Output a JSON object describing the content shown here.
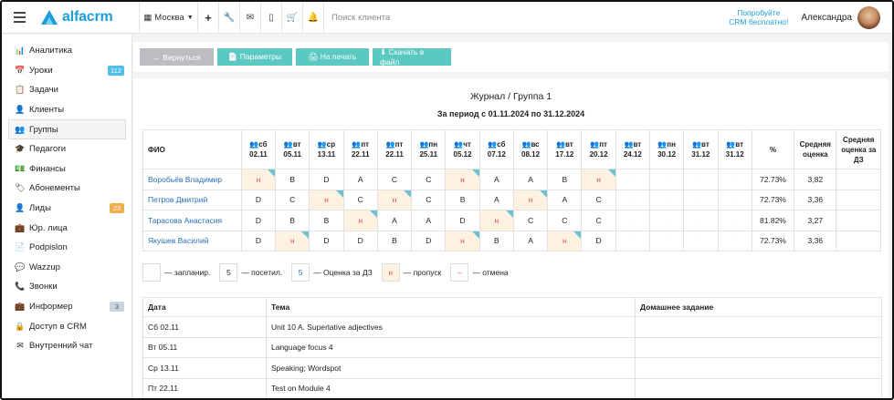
{
  "header": {
    "city": "Москва",
    "search_placeholder": "Поиск клиента",
    "try_line1": "Попробуйте",
    "try_line2": "CRM бесплатно!",
    "user_name": "Александра",
    "logo_text": "alfacrm"
  },
  "sidebar": {
    "items": [
      {
        "label": "Аналитика",
        "icon": "📊",
        "name": "analytics"
      },
      {
        "label": "Уроки",
        "icon": "📅",
        "name": "lessons",
        "badge": "112",
        "badge_color": "blue"
      },
      {
        "label": "Задачи",
        "icon": "📋",
        "name": "tasks"
      },
      {
        "label": "Клиенты",
        "icon": "👤",
        "name": "clients"
      },
      {
        "label": "Группы",
        "icon": "👥",
        "name": "groups",
        "active": true
      },
      {
        "label": "Педагоги",
        "icon": "🎓",
        "name": "teachers"
      },
      {
        "label": "Финансы",
        "icon": "💵",
        "name": "finances"
      },
      {
        "label": "Абонементы",
        "icon": "🏷",
        "name": "subscriptions"
      },
      {
        "label": "Лиды",
        "icon": "👤",
        "name": "leads",
        "badge": "23",
        "badge_color": "orange"
      },
      {
        "label": "Юр. лица",
        "icon": "💼",
        "name": "legal-entities"
      },
      {
        "label": "Podpislon",
        "icon": "📄",
        "name": "podpislon"
      },
      {
        "label": "Wazzup",
        "icon": "💬",
        "name": "wazzup"
      },
      {
        "label": "Звонки",
        "icon": "📞",
        "name": "calls"
      },
      {
        "label": "Информер",
        "icon": "💼",
        "name": "informer",
        "badge": "3",
        "badge_color": "gray"
      },
      {
        "label": "Доступ в CRM",
        "icon": "🔒",
        "name": "crm-access"
      },
      {
        "label": "Внутренний чат",
        "icon": "✉",
        "name": "internal-chat"
      }
    ]
  },
  "toolbar": {
    "back": "← Вернуться",
    "params": "📄 Параметры",
    "print": "🖨 На печать",
    "download": "⬇ Скачать в файл"
  },
  "journal": {
    "title": "Журнал / Группа 1",
    "period": "За период с 01.11.2024 по 31.12.2024",
    "col_fio": "ФИО",
    "col_percent": "%",
    "col_avg": "Средняя оценка",
    "col_avg_dz": "Средняя оценка за ДЗ",
    "dates": [
      {
        "dow": "сб",
        "date": "02.11"
      },
      {
        "dow": "вт",
        "date": "05.11"
      },
      {
        "dow": "ср",
        "date": "13.11"
      },
      {
        "dow": "пт",
        "date": "22.11"
      },
      {
        "dow": "пт",
        "date": "22.11"
      },
      {
        "dow": "пн",
        "date": "25.11"
      },
      {
        "dow": "чт",
        "date": "05.12"
      },
      {
        "dow": "сб",
        "date": "07.12"
      },
      {
        "dow": "вс",
        "date": "08.12"
      },
      {
        "dow": "вт",
        "date": "17.12"
      },
      {
        "dow": "пт",
        "date": "20.12"
      },
      {
        "dow": "вт",
        "date": "24.12"
      },
      {
        "dow": "пн",
        "date": "30.12"
      },
      {
        "dow": "вт",
        "date": "31.12"
      },
      {
        "dow": "вт",
        "date": "31.12"
      }
    ],
    "students": [
      {
        "name": "Воробьёв Владимир",
        "marks": [
          "н",
          "B",
          "D",
          "A",
          "C",
          "C",
          "н",
          "A",
          "A",
          "B",
          "н",
          "·",
          "·",
          "·",
          "·"
        ],
        "percent": "72.73%",
        "avg": "3,82",
        "avg_dz": ""
      },
      {
        "name": "Петров Дмитрий",
        "marks": [
          "D",
          "C",
          "н",
          "C",
          "н",
          "C",
          "B",
          "A",
          "н",
          "A",
          "C",
          "·",
          "·",
          "·",
          "·"
        ],
        "percent": "72.73%",
        "avg": "3,36",
        "avg_dz": ""
      },
      {
        "name": "Тарасова Анастасия",
        "marks": [
          "D",
          "B",
          "B",
          "н",
          "A",
          "A",
          "D",
          "н",
          "C",
          "C",
          "C",
          "·",
          "·",
          "·",
          "·"
        ],
        "percent": "81.82%",
        "avg": "3,27",
        "avg_dz": ""
      },
      {
        "name": "Якушев Василий",
        "marks": [
          "D",
          "н",
          "D",
          "D",
          "B",
          "D",
          "н",
          "B",
          "A",
          "н",
          "D",
          "·",
          "·",
          "·",
          "·"
        ],
        "percent": "72.73%",
        "avg": "3,36",
        "avg_dz": ""
      }
    ]
  },
  "legend": {
    "plan_glyph": "·",
    "plan_text": "— запланир.",
    "attended_value": "5",
    "attended_text": "— посетил.",
    "dz_value": "5",
    "dz_text": "— Оценка за ДЗ",
    "miss_value": "н",
    "miss_text": "— пропуск",
    "cancel_value": "–",
    "cancel_text": "— отмена"
  },
  "lessons": {
    "col_date": "Дата",
    "col_topic": "Тема",
    "col_hw": "Домашнее задание",
    "rows": [
      {
        "date": "Сб  02.11",
        "topic": "Unit 10 A. Superlative adjectives",
        "hw": ""
      },
      {
        "date": "Вт  05.11",
        "topic": "Language focus 4",
        "hw": ""
      },
      {
        "date": "Ср  13.11",
        "topic": "Speaking; Wordspot",
        "hw": ""
      },
      {
        "date": "Пт  22.11",
        "topic": "Test on Module 4",
        "hw": ""
      }
    ]
  },
  "colors": {
    "accent": "#1a9fda",
    "teal": "#5bc8c1",
    "miss_bg": "#fdf2e2",
    "miss_text": "#d9534f"
  }
}
